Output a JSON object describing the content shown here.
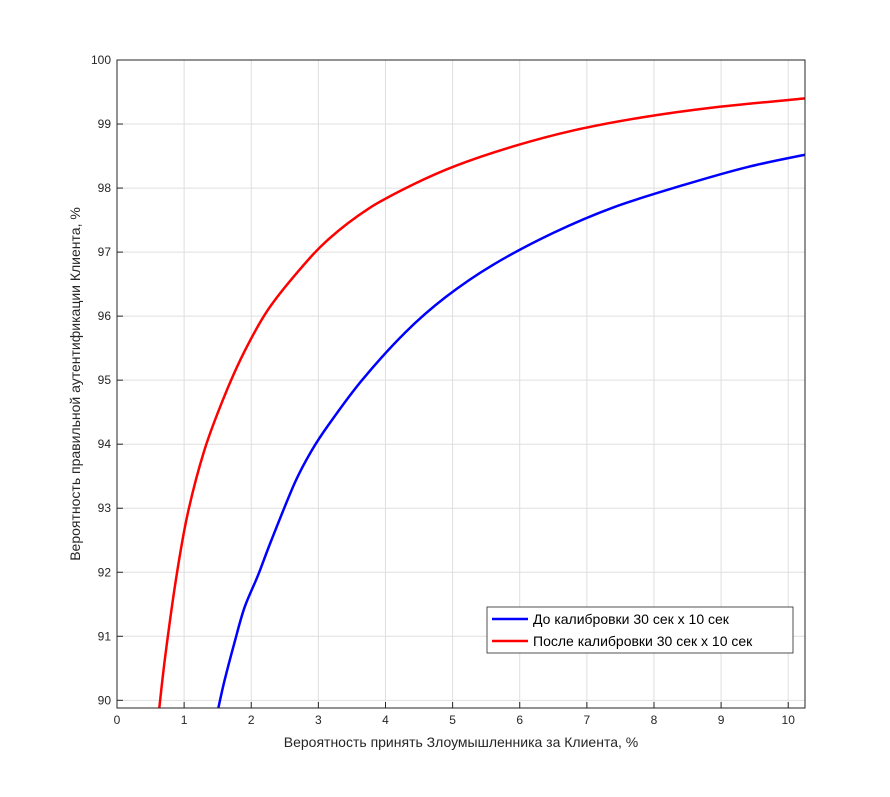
{
  "chart_data": {
    "type": "line",
    "title": "",
    "xlabel": "Вероятность принять Злоумышленника за Клиента, %",
    "ylabel": "Вероятность правильной аутентификации Клиента, %",
    "xlim": [
      0,
      10.25
    ],
    "ylim": [
      89.88,
      100
    ],
    "xticks": [
      "0",
      "1",
      "2",
      "3",
      "4",
      "5",
      "6",
      "7",
      "8",
      "9",
      "10"
    ],
    "yticks": [
      "90",
      "91",
      "92",
      "93",
      "94",
      "95",
      "96",
      "97",
      "98",
      "99",
      "100"
    ],
    "grid": true,
    "legend_position": "bottom-right",
    "series": [
      {
        "name": "До калибровки 30 сек x 10 сек",
        "color": "#0000ff",
        "x": [
          1.51,
          1.6,
          1.75,
          1.9,
          2.1,
          2.3,
          2.65,
          2.9,
          3.15,
          3.65,
          4.3,
          4.9,
          5.6,
          6.5,
          7.4,
          8.45,
          9.4,
          10.25
        ],
        "y": [
          89.88,
          90.3,
          90.9,
          91.45,
          91.95,
          92.5,
          93.4,
          93.9,
          94.3,
          95.0,
          95.75,
          96.3,
          96.8,
          97.3,
          97.7,
          98.05,
          98.33,
          98.52
        ]
      },
      {
        "name": "После калибровки 30 сек x 10 сек",
        "color": "#ff0000",
        "x": [
          0.63,
          0.72,
          0.88,
          1.05,
          1.3,
          1.6,
          1.9,
          2.25,
          2.7,
          3.15,
          3.75,
          4.4,
          5.05,
          5.9,
          6.8,
          7.8,
          8.9,
          10.25
        ],
        "y": [
          89.88,
          90.7,
          91.9,
          92.9,
          93.9,
          94.75,
          95.45,
          96.1,
          96.7,
          97.2,
          97.68,
          98.05,
          98.35,
          98.65,
          98.9,
          99.1,
          99.26,
          99.4
        ]
      }
    ]
  }
}
